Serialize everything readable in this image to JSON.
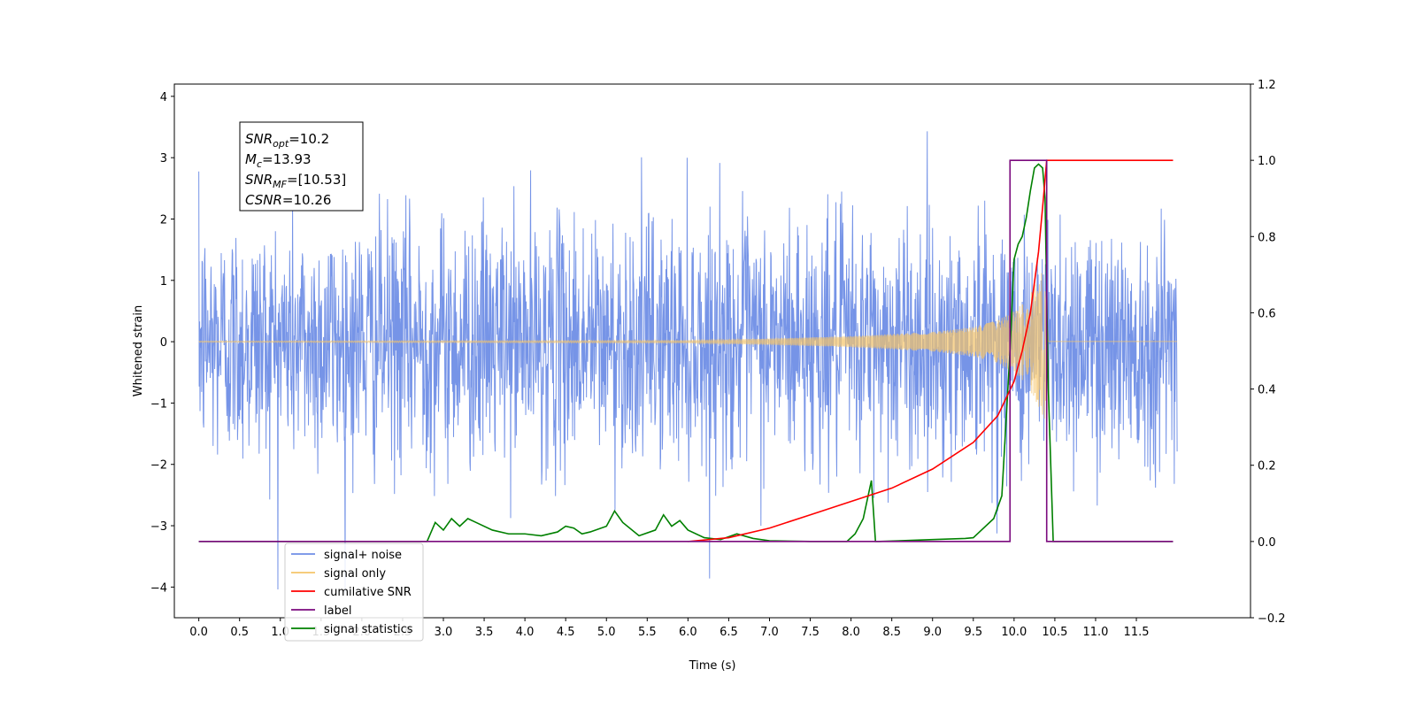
{
  "chart_data": {
    "type": "line",
    "xlabel": "Time (s)",
    "ylabel": "Whitened strain",
    "xlim": [
      -0.3,
      12.9
    ],
    "ylim": [
      -4.5,
      4.2
    ],
    "y2lim": [
      -0.2,
      1.2
    ],
    "x_ticks": [
      "0.0",
      "0.5",
      "1.0",
      "1.5",
      "2.0",
      "2.5",
      "3.0",
      "3.5",
      "4.0",
      "4.5",
      "5.0",
      "5.5",
      "6.0",
      "6.5",
      "7.0",
      "7.5",
      "8.0",
      "8.5",
      "9.0",
      "9.5",
      "10.0",
      "10.5",
      "11.0",
      "11.5"
    ],
    "y_ticks": [
      "4",
      "3",
      "2",
      "1",
      "0",
      "−1",
      "−2",
      "−3",
      "−4"
    ],
    "y2_ticks": [
      "1.2",
      "1.0",
      "0.8",
      "0.6",
      "0.4",
      "0.2",
      "0.0",
      "−0.2"
    ],
    "info_box": [
      {
        "base": "SNR",
        "sub": "opt",
        "value": "=10.2"
      },
      {
        "base": "M",
        "sub": "c",
        "value": "=13.93"
      },
      {
        "base": "SNR",
        "sub": "MF",
        "value": "=[10.53]"
      },
      {
        "base": "CSNR",
        "sub": "",
        "value": "=10.26"
      }
    ],
    "series": [
      {
        "name": "signal+ noise",
        "color": "#6f8ee6",
        "axis": "left",
        "x_range": [
          0.0,
          12.0
        ],
        "noise_std": 1.0,
        "min": -4.1,
        "max": 3.8
      },
      {
        "name": "signal only",
        "color": "#f5c46a",
        "axis": "left",
        "x_range": [
          0.0,
          12.0
        ],
        "chirp_end": 10.38,
        "envelope": {
          "x": [
            0.0,
            6.0,
            7.0,
            8.0,
            9.0,
            9.5,
            9.8,
            10.0,
            10.1,
            10.2,
            10.3,
            10.38,
            10.42
          ],
          "y": [
            0.01,
            0.02,
            0.05,
            0.09,
            0.16,
            0.24,
            0.35,
            0.5,
            0.62,
            0.8,
            1.05,
            1.3,
            0.01
          ]
        }
      },
      {
        "name": "cumilative SNR",
        "color": "#ff0000",
        "axis": "right",
        "x": [
          6.0,
          6.5,
          7.0,
          7.5,
          8.0,
          8.5,
          9.0,
          9.5,
          9.8,
          10.0,
          10.1,
          10.2,
          10.3,
          10.36,
          10.4,
          11.0,
          11.5,
          11.95
        ],
        "y": [
          0.0,
          0.01,
          0.035,
          0.07,
          0.105,
          0.14,
          0.19,
          0.26,
          0.33,
          0.42,
          0.5,
          0.6,
          0.76,
          0.9,
          1.0,
          1.0,
          1.0,
          1.0
        ]
      },
      {
        "name": "label",
        "color": "#7b0a7e",
        "axis": "right",
        "x": [
          0.0,
          9.95,
          9.95,
          10.4,
          10.4,
          11.95
        ],
        "y": [
          0.0,
          0.0,
          1.0,
          1.0,
          0.0,
          0.0
        ]
      },
      {
        "name": "signal statistics",
        "color": "#008000",
        "axis": "right",
        "x": [
          0.0,
          2.8,
          2.9,
          3.0,
          3.1,
          3.2,
          3.3,
          3.4,
          3.6,
          3.8,
          4.0,
          4.2,
          4.4,
          4.5,
          4.6,
          4.7,
          4.8,
          5.0,
          5.1,
          5.2,
          5.4,
          5.6,
          5.7,
          5.8,
          5.9,
          6.0,
          6.2,
          6.4,
          6.6,
          6.8,
          7.0,
          7.5,
          7.95,
          8.05,
          8.15,
          8.25,
          8.3,
          8.35,
          9.0,
          9.4,
          9.5,
          9.6,
          9.75,
          9.85,
          9.95,
          10.0,
          10.05,
          10.1,
          10.15,
          10.2,
          10.25,
          10.3,
          10.35,
          10.38,
          10.42,
          10.48,
          11.95
        ],
        "y": [
          0.0,
          0.0,
          0.05,
          0.03,
          0.06,
          0.04,
          0.06,
          0.05,
          0.03,
          0.02,
          0.02,
          0.015,
          0.025,
          0.04,
          0.035,
          0.02,
          0.025,
          0.04,
          0.08,
          0.05,
          0.015,
          0.03,
          0.07,
          0.04,
          0.055,
          0.03,
          0.01,
          0.005,
          0.02,
          0.008,
          0.002,
          0.0,
          0.0,
          0.02,
          0.06,
          0.16,
          0.0,
          0.0,
          0.005,
          0.008,
          0.01,
          0.03,
          0.06,
          0.12,
          0.5,
          0.74,
          0.78,
          0.8,
          0.85,
          0.92,
          0.98,
          0.99,
          0.98,
          0.9,
          0.4,
          0.0,
          0.0
        ]
      }
    ],
    "legend": {
      "placement": "lower-left",
      "entries": [
        "signal+ noise",
        "signal only",
        "cumilative SNR",
        "label",
        "signal statistics"
      ]
    }
  }
}
